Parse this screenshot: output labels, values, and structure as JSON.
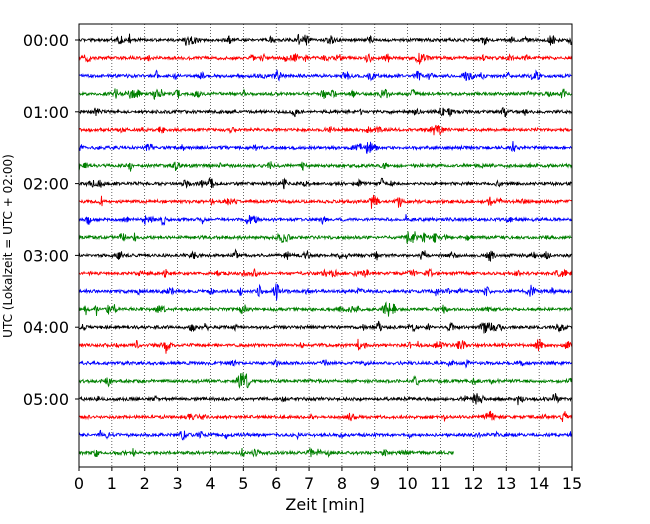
{
  "chart_data": {
    "type": "line",
    "title": "",
    "xlabel": "Zeit  [min]",
    "ylabel": "UTC (Lokalzeit = UTC + 02:00)",
    "xlim": [
      0,
      15
    ],
    "x_ticks": [
      "0",
      "1",
      "2",
      "3",
      "4",
      "5",
      "6",
      "7",
      "8",
      "9",
      "10",
      "11",
      "12",
      "13",
      "14",
      "15"
    ],
    "y_tick_labels": [
      "00:00",
      "01:00",
      "02:00",
      "03:00",
      "04:00",
      "05:00"
    ],
    "y_tick_trace_index": [
      0,
      4,
      8,
      12,
      16,
      20
    ],
    "grid": "vertical dotted at each minute",
    "trace_minutes": 15,
    "traces_count": 24,
    "last_trace_end_minute": 11.4,
    "colors": [
      "#000000",
      "#ff0000",
      "#0000ff",
      "#008000"
    ],
    "series": [
      {
        "start": "00:00",
        "color": "#000000"
      },
      {
        "start": "00:15",
        "color": "#ff0000"
      },
      {
        "start": "00:30",
        "color": "#0000ff"
      },
      {
        "start": "00:45",
        "color": "#008000"
      },
      {
        "start": "01:00",
        "color": "#000000"
      },
      {
        "start": "01:15",
        "color": "#ff0000"
      },
      {
        "start": "01:30",
        "color": "#0000ff"
      },
      {
        "start": "01:45",
        "color": "#008000"
      },
      {
        "start": "02:00",
        "color": "#000000"
      },
      {
        "start": "02:15",
        "color": "#ff0000"
      },
      {
        "start": "02:30",
        "color": "#0000ff"
      },
      {
        "start": "02:45",
        "color": "#008000"
      },
      {
        "start": "03:00",
        "color": "#000000"
      },
      {
        "start": "03:15",
        "color": "#ff0000"
      },
      {
        "start": "03:30",
        "color": "#0000ff"
      },
      {
        "start": "03:45",
        "color": "#008000"
      },
      {
        "start": "04:00",
        "color": "#000000"
      },
      {
        "start": "04:15",
        "color": "#ff0000"
      },
      {
        "start": "04:30",
        "color": "#0000ff"
      },
      {
        "start": "04:45",
        "color": "#008000"
      },
      {
        "start": "05:00",
        "color": "#000000"
      },
      {
        "start": "05:15",
        "color": "#ff0000"
      },
      {
        "start": "05:30",
        "color": "#0000ff"
      },
      {
        "start": "05:45",
        "color": "#008000",
        "end_minute": 11.4
      }
    ]
  }
}
